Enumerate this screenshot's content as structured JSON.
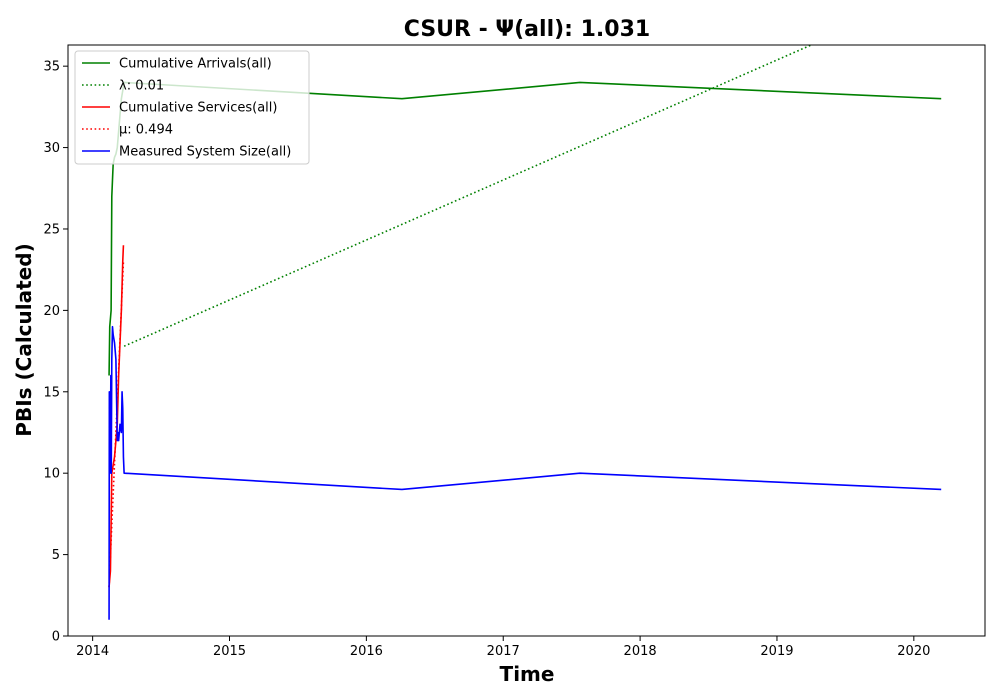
{
  "chart_data": {
    "type": "line",
    "title": "CSUR -  Ψ(all): 1.031",
    "xlabel": "Time",
    "ylabel": "PBIs (Calculated)",
    "xlim": [
      2013.82,
      2020.52
    ],
    "ylim": [
      0,
      36.3
    ],
    "xticks": [
      2014,
      2015,
      2016,
      2017,
      2018,
      2019,
      2020
    ],
    "yticks": [
      0,
      5,
      10,
      15,
      20,
      25,
      30,
      35
    ],
    "grid": false,
    "legend_position": "upper-left",
    "series": [
      {
        "name": "Cumulative Arrivals(all)",
        "color": "#008000",
        "style": "solid",
        "x": [
          2014.12,
          2014.125,
          2014.13,
          2014.135,
          2014.14,
          2014.145,
          2014.15,
          2014.155,
          2014.16,
          2014.17,
          2014.18,
          2014.19,
          2014.2,
          2014.21,
          2014.22,
          2014.23,
          2016.26,
          2017.56,
          2020.2
        ],
        "y": [
          16,
          19,
          19.5,
          20,
          27,
          28,
          29,
          29.2,
          29.4,
          29.6,
          30,
          31,
          32,
          33,
          33.5,
          34,
          33,
          34,
          33
        ]
      },
      {
        "name": "λ: 0.01",
        "color": "#008000",
        "style": "dotted",
        "x": [
          2014.23,
          2019.25
        ],
        "y": [
          17.8,
          36.3
        ]
      },
      {
        "name": "Cumulative Services(all)",
        "color": "#ff0000",
        "style": "solid",
        "x": [
          2014.12,
          2014.125,
          2014.13,
          2014.14,
          2014.15,
          2014.16,
          2014.17,
          2014.18,
          2014.19,
          2014.2,
          2014.21,
          2014.22,
          2014.225
        ],
        "y": [
          3,
          3.5,
          4,
          10,
          10.5,
          11,
          12,
          13,
          16,
          18,
          20,
          23,
          24
        ]
      },
      {
        "name": "μ: 0.494",
        "color": "#ff0000",
        "style": "dotted",
        "x": [
          2014.12,
          2014.225
        ],
        "y": [
          3,
          23
        ]
      },
      {
        "name": "Measured System Size(all)",
        "color": "#0000ff",
        "style": "solid",
        "x": [
          2014.12,
          2014.122,
          2014.125,
          2014.128,
          2014.13,
          2014.133,
          2014.136,
          2014.14,
          2014.145,
          2014.15,
          2014.16,
          2014.17,
          2014.18,
          2014.185,
          2014.19,
          2014.2,
          2014.21,
          2014.215,
          2014.22,
          2014.225,
          2014.23,
          2016.26,
          2017.56,
          2020.2
        ],
        "y": [
          1,
          15,
          10,
          14,
          11,
          16,
          10,
          17,
          19,
          18.5,
          18,
          17,
          12,
          12.5,
          12,
          13,
          12.5,
          15,
          14,
          11,
          10,
          9,
          10,
          9
        ]
      }
    ]
  }
}
